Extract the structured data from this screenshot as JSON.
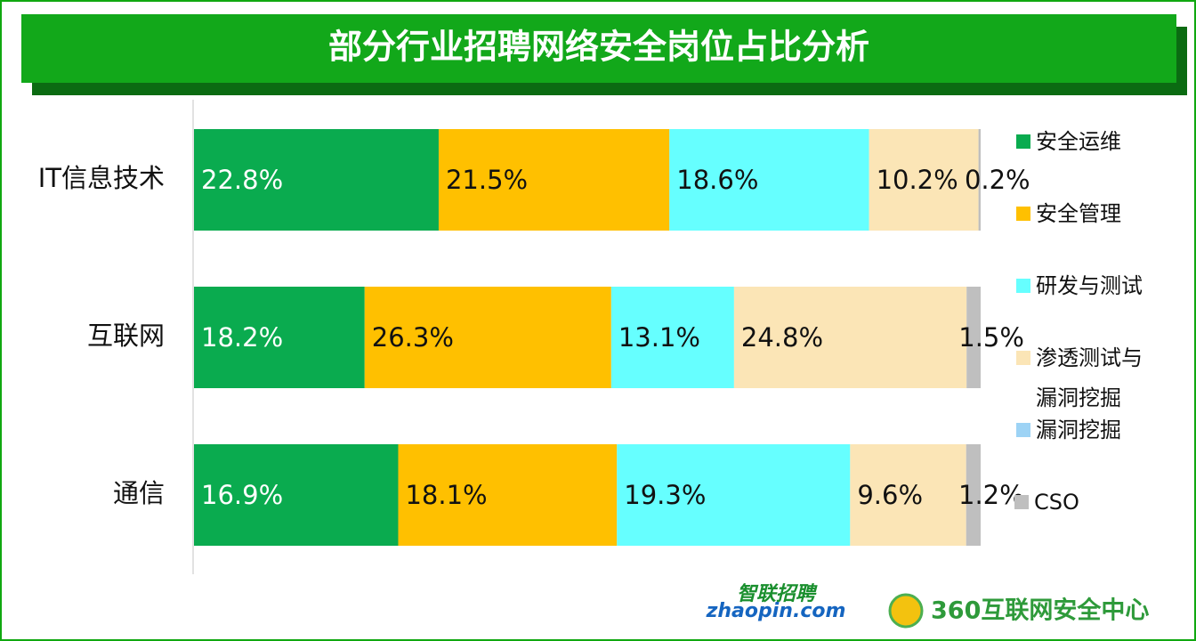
{
  "chart_data": {
    "type": "bar100h",
    "title": "部分行业招聘网络安全岗位占比分析",
    "categories": [
      "IT信息技术",
      "互联网",
      "通信"
    ],
    "series": [
      {
        "name": "安全运维",
        "color": "#0aab4f",
        "values": [
          22.8,
          18.2,
          16.9
        ],
        "value_labels": [
          "22.8%",
          "18.2%",
          "16.9%"
        ]
      },
      {
        "name": "安全管理",
        "color": "#ffc000",
        "values": [
          21.5,
          26.3,
          18.1
        ],
        "value_labels": [
          "21.5%",
          "26.3%",
          "18.1%"
        ]
      },
      {
        "name": "研发与测试",
        "color": "#66ffff",
        "values": [
          18.6,
          13.1,
          19.3
        ],
        "value_labels": [
          "18.6%",
          "13.1%",
          "19.3%"
        ]
      },
      {
        "name": "渗透测试与漏洞挖掘",
        "color": "#fbe5b6",
        "values": [
          10.2,
          24.8,
          9.6
        ],
        "value_labels": [
          "10.2%",
          "24.8%",
          "9.6%"
        ]
      },
      {
        "name": "漏洞挖掘",
        "color": "#9dd3f5",
        "values": [
          null,
          null,
          null
        ],
        "value_labels": [
          null,
          null,
          null
        ]
      },
      {
        "name": "CSO",
        "color": "#bfbfbf",
        "values": [
          0.2,
          1.5,
          1.2
        ],
        "value_labels": [
          "0.2%",
          "1.5%",
          "1.2%"
        ]
      }
    ],
    "legend": "right",
    "logos": {
      "zhaopin_cn": "智联招聘",
      "zhaopin_en": "zhaopin.com",
      "qihoo": "360互联网安全中心"
    }
  }
}
